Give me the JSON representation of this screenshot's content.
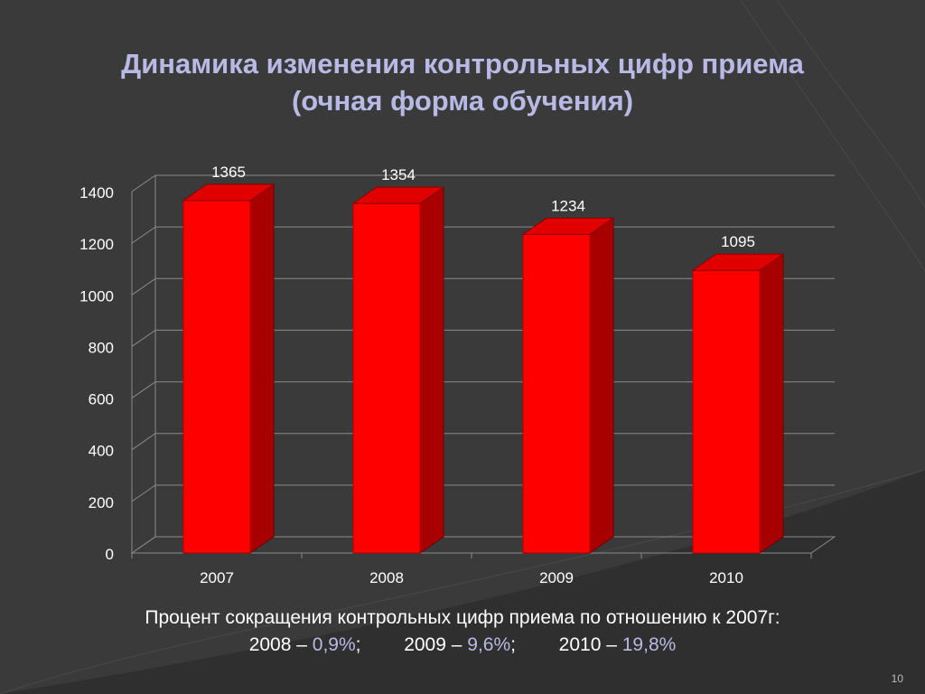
{
  "slide": {
    "title_line_1": "Динамика изменения контрольных цифр приема",
    "title_line_2": "(очная форма обучения)",
    "footer_line_1": "Процент сокращения контрольных цифр приема по отношению к 2007г:",
    "footer_items": [
      {
        "year_label": "2008 –",
        "percent": "0,9%",
        "separator": ";"
      },
      {
        "year_label": "2009 –",
        "percent": "9,6%",
        "separator": ";"
      },
      {
        "year_label": "2010 –",
        "percent": "19,8%",
        "separator": ""
      }
    ],
    "slide_number": "10"
  },
  "colors": {
    "background": "#3a3a3a",
    "bar_front": "#ff0000",
    "bar_side": "#a80000",
    "bar_top": "#e00000",
    "title": "#b9b9e6",
    "accent_percent": "#b9b9e6",
    "text": "#ffffff"
  },
  "chart_data": {
    "type": "bar",
    "style": "3d-column",
    "categories": [
      "2007",
      "2008",
      "2009",
      "2010"
    ],
    "values": [
      1365,
      1354,
      1234,
      1095
    ],
    "data_labels": [
      "1365",
      "1354",
      "1234",
      "1095"
    ],
    "y_ticks": [
      "0",
      "200",
      "400",
      "600",
      "800",
      "1000",
      "1200",
      "1400"
    ],
    "ylim": [
      0,
      1400
    ],
    "grid": true,
    "legend": "none"
  }
}
